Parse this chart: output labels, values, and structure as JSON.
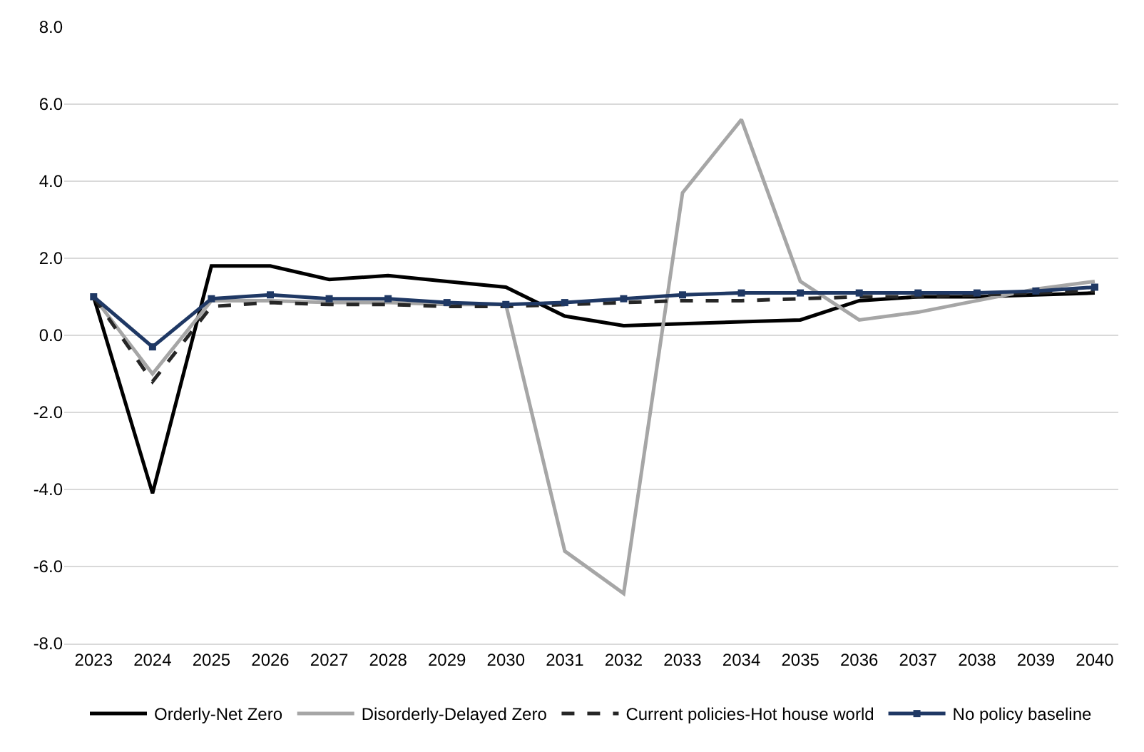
{
  "chart_data": {
    "type": "line",
    "categories": [
      "2023",
      "2024",
      "2025",
      "2026",
      "2027",
      "2028",
      "2029",
      "2030",
      "2031",
      "2032",
      "2033",
      "2034",
      "2035",
      "2036",
      "2037",
      "2038",
      "2039",
      "2040"
    ],
    "series": [
      {
        "name": "Orderly-Net Zero",
        "color": "#000000",
        "line_style": "solid",
        "marker": "none",
        "values": [
          1.0,
          -4.1,
          1.8,
          1.8,
          1.45,
          1.55,
          1.4,
          1.25,
          0.5,
          0.25,
          0.3,
          0.35,
          0.4,
          0.9,
          1.0,
          1.0,
          1.05,
          1.1
        ]
      },
      {
        "name": "Disorderly-Delayed Zero",
        "color": "#a6a6a6",
        "line_style": "solid",
        "marker": "none",
        "values": [
          1.0,
          -1.0,
          0.9,
          0.9,
          0.85,
          0.85,
          0.8,
          0.8,
          -5.6,
          -6.7,
          3.7,
          5.6,
          1.4,
          0.4,
          0.6,
          0.9,
          1.2,
          1.4
        ]
      },
      {
        "name": "Current policies-Hot house world",
        "color": "#262626",
        "line_style": "dashed",
        "marker": "none",
        "values": [
          1.0,
          -1.2,
          0.75,
          0.85,
          0.8,
          0.8,
          0.75,
          0.75,
          0.8,
          0.85,
          0.9,
          0.9,
          0.95,
          1.0,
          1.0,
          1.05,
          1.1,
          1.15
        ]
      },
      {
        "name": "No policy baseline",
        "color": "#1f3864",
        "line_style": "solid",
        "marker": "square",
        "values": [
          1.0,
          -0.3,
          0.95,
          1.05,
          0.95,
          0.95,
          0.85,
          0.8,
          0.85,
          0.95,
          1.05,
          1.1,
          1.1,
          1.1,
          1.1,
          1.1,
          1.15,
          1.25
        ]
      }
    ],
    "ylim": [
      -8,
      8
    ],
    "yticks": [
      {
        "value": -8,
        "label": "-8.0"
      },
      {
        "value": -6,
        "label": "-6.0"
      },
      {
        "value": -4,
        "label": "-4.0"
      },
      {
        "value": -2,
        "label": "-2.0"
      },
      {
        "value": 0,
        "label": "0.0"
      },
      {
        "value": 2,
        "label": "2.0"
      },
      {
        "value": 4,
        "label": "4.0"
      },
      {
        "value": 6,
        "label": "6.0"
      },
      {
        "value": 8,
        "label": "8.0"
      }
    ],
    "grid": "y",
    "legend": "bottom"
  }
}
